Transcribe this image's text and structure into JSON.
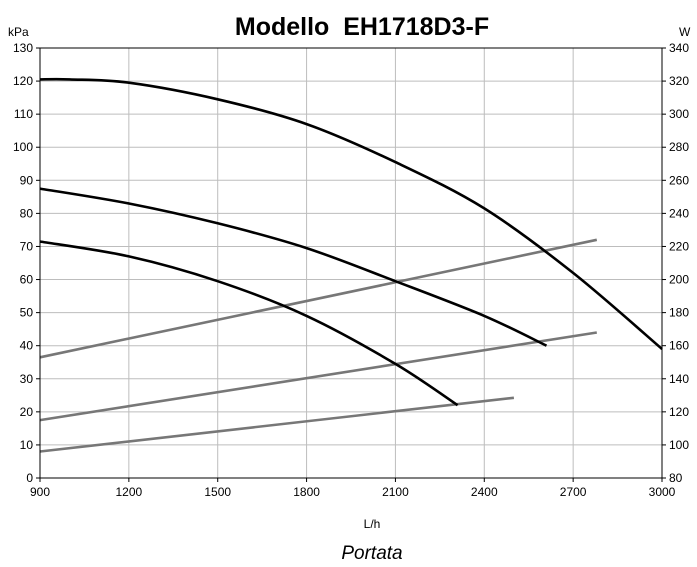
{
  "chart_data": {
    "type": "line",
    "title": "Modello  EH1718D3-F",
    "y_unit_left": "kPa",
    "y_unit_right": "W",
    "x_unit": "L/h",
    "xlabel": "Portata",
    "xlim": [
      900,
      3000
    ],
    "ylim_left": [
      0,
      130
    ],
    "ylim_right": [
      80,
      340
    ],
    "x_ticks": [
      900,
      1200,
      1500,
      1800,
      2100,
      2400,
      2700,
      3000
    ],
    "y_ticks_left": [
      0,
      10,
      20,
      30,
      40,
      50,
      60,
      70,
      80,
      90,
      100,
      110,
      120,
      130
    ],
    "y_ticks_right": [
      80,
      100,
      120,
      140,
      160,
      180,
      200,
      220,
      240,
      260,
      280,
      300,
      320,
      340
    ],
    "grid": true,
    "pressure_series": [
      {
        "axis": "left",
        "color": "#000000",
        "x": [
          900,
          1000,
          1200,
          1500,
          1800,
          2100,
          2400,
          2700,
          3000
        ],
        "y": [
          120.5,
          120.5,
          119.5,
          114.5,
          107,
          95.5,
          81.5,
          62,
          39
        ]
      },
      {
        "axis": "left",
        "color": "#000000",
        "x": [
          900,
          1200,
          1500,
          1800,
          2100,
          2400,
          2610
        ],
        "y": [
          87.5,
          83,
          77,
          69.5,
          59.5,
          49,
          40
        ]
      },
      {
        "axis": "left",
        "color": "#000000",
        "x": [
          900,
          1200,
          1500,
          1800,
          2100,
          2310
        ],
        "y": [
          71.5,
          67,
          59.5,
          49,
          34.5,
          22
        ]
      }
    ],
    "power_series": [
      {
        "axis": "right",
        "color": "#777777",
        "x": [
          900,
          2780
        ],
        "y": [
          153,
          224
        ]
      },
      {
        "axis": "right",
        "color": "#777777",
        "x": [
          900,
          2780
        ],
        "y": [
          115,
          168
        ]
      },
      {
        "axis": "right",
        "color": "#777777",
        "x": [
          900,
          2500
        ],
        "y": [
          96,
          128.5
        ]
      }
    ]
  }
}
